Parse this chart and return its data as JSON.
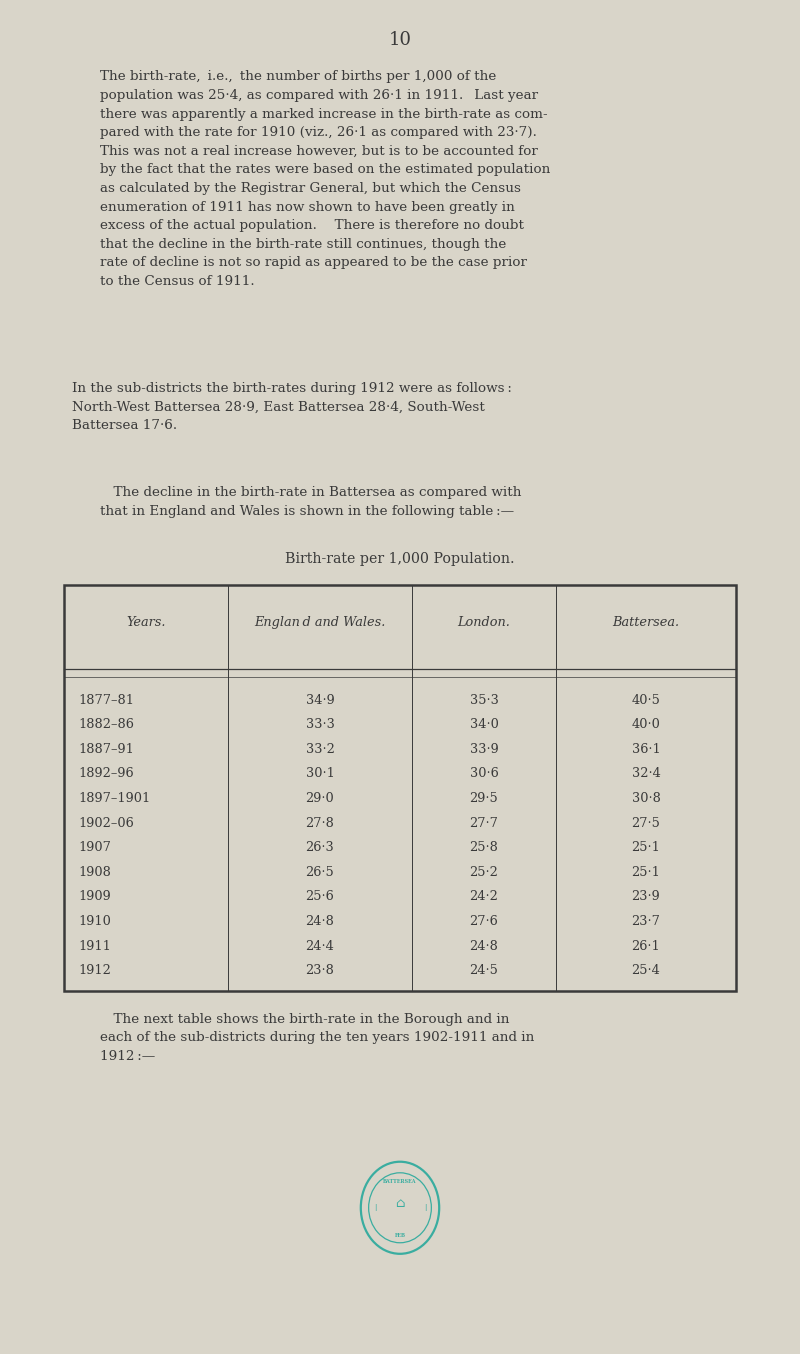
{
  "page_number": "10",
  "bg_color": "#d9d5c9",
  "text_color": "#3a3a3a",
  "table_title": "Birth-rate per 1,000 Population.",
  "table_headers": [
    "Years.",
    "Englan d and Wales.",
    "London.",
    "Battersea."
  ],
  "table_rows": [
    [
      "1877–81",
      "34·9",
      "35·3",
      "40·5"
    ],
    [
      "1882–86",
      "33·3",
      "34·0",
      "40·0"
    ],
    [
      "1887–91",
      "33·2",
      "33·9",
      "36·1"
    ],
    [
      "1892–96",
      "30·1",
      "30·6",
      "32·4"
    ],
    [
      "1897–1901",
      "29·0",
      "29·5",
      "30·8"
    ],
    [
      "1902–06",
      "27·8",
      "27·7",
      "27·5"
    ],
    [
      "1907",
      "26·3",
      "25·8",
      "25·1"
    ],
    [
      "1908",
      "26·5",
      "25·2",
      "25·1"
    ],
    [
      "1909",
      "25·6",
      "24·2",
      "23·9"
    ],
    [
      "1910",
      "24·8",
      "27·6",
      "23·7"
    ],
    [
      "1911",
      "24·4",
      "24·8",
      "26·1"
    ],
    [
      "1912",
      "23·8",
      "24·5",
      "25·4"
    ]
  ],
  "stamp_color": "#3aada0"
}
